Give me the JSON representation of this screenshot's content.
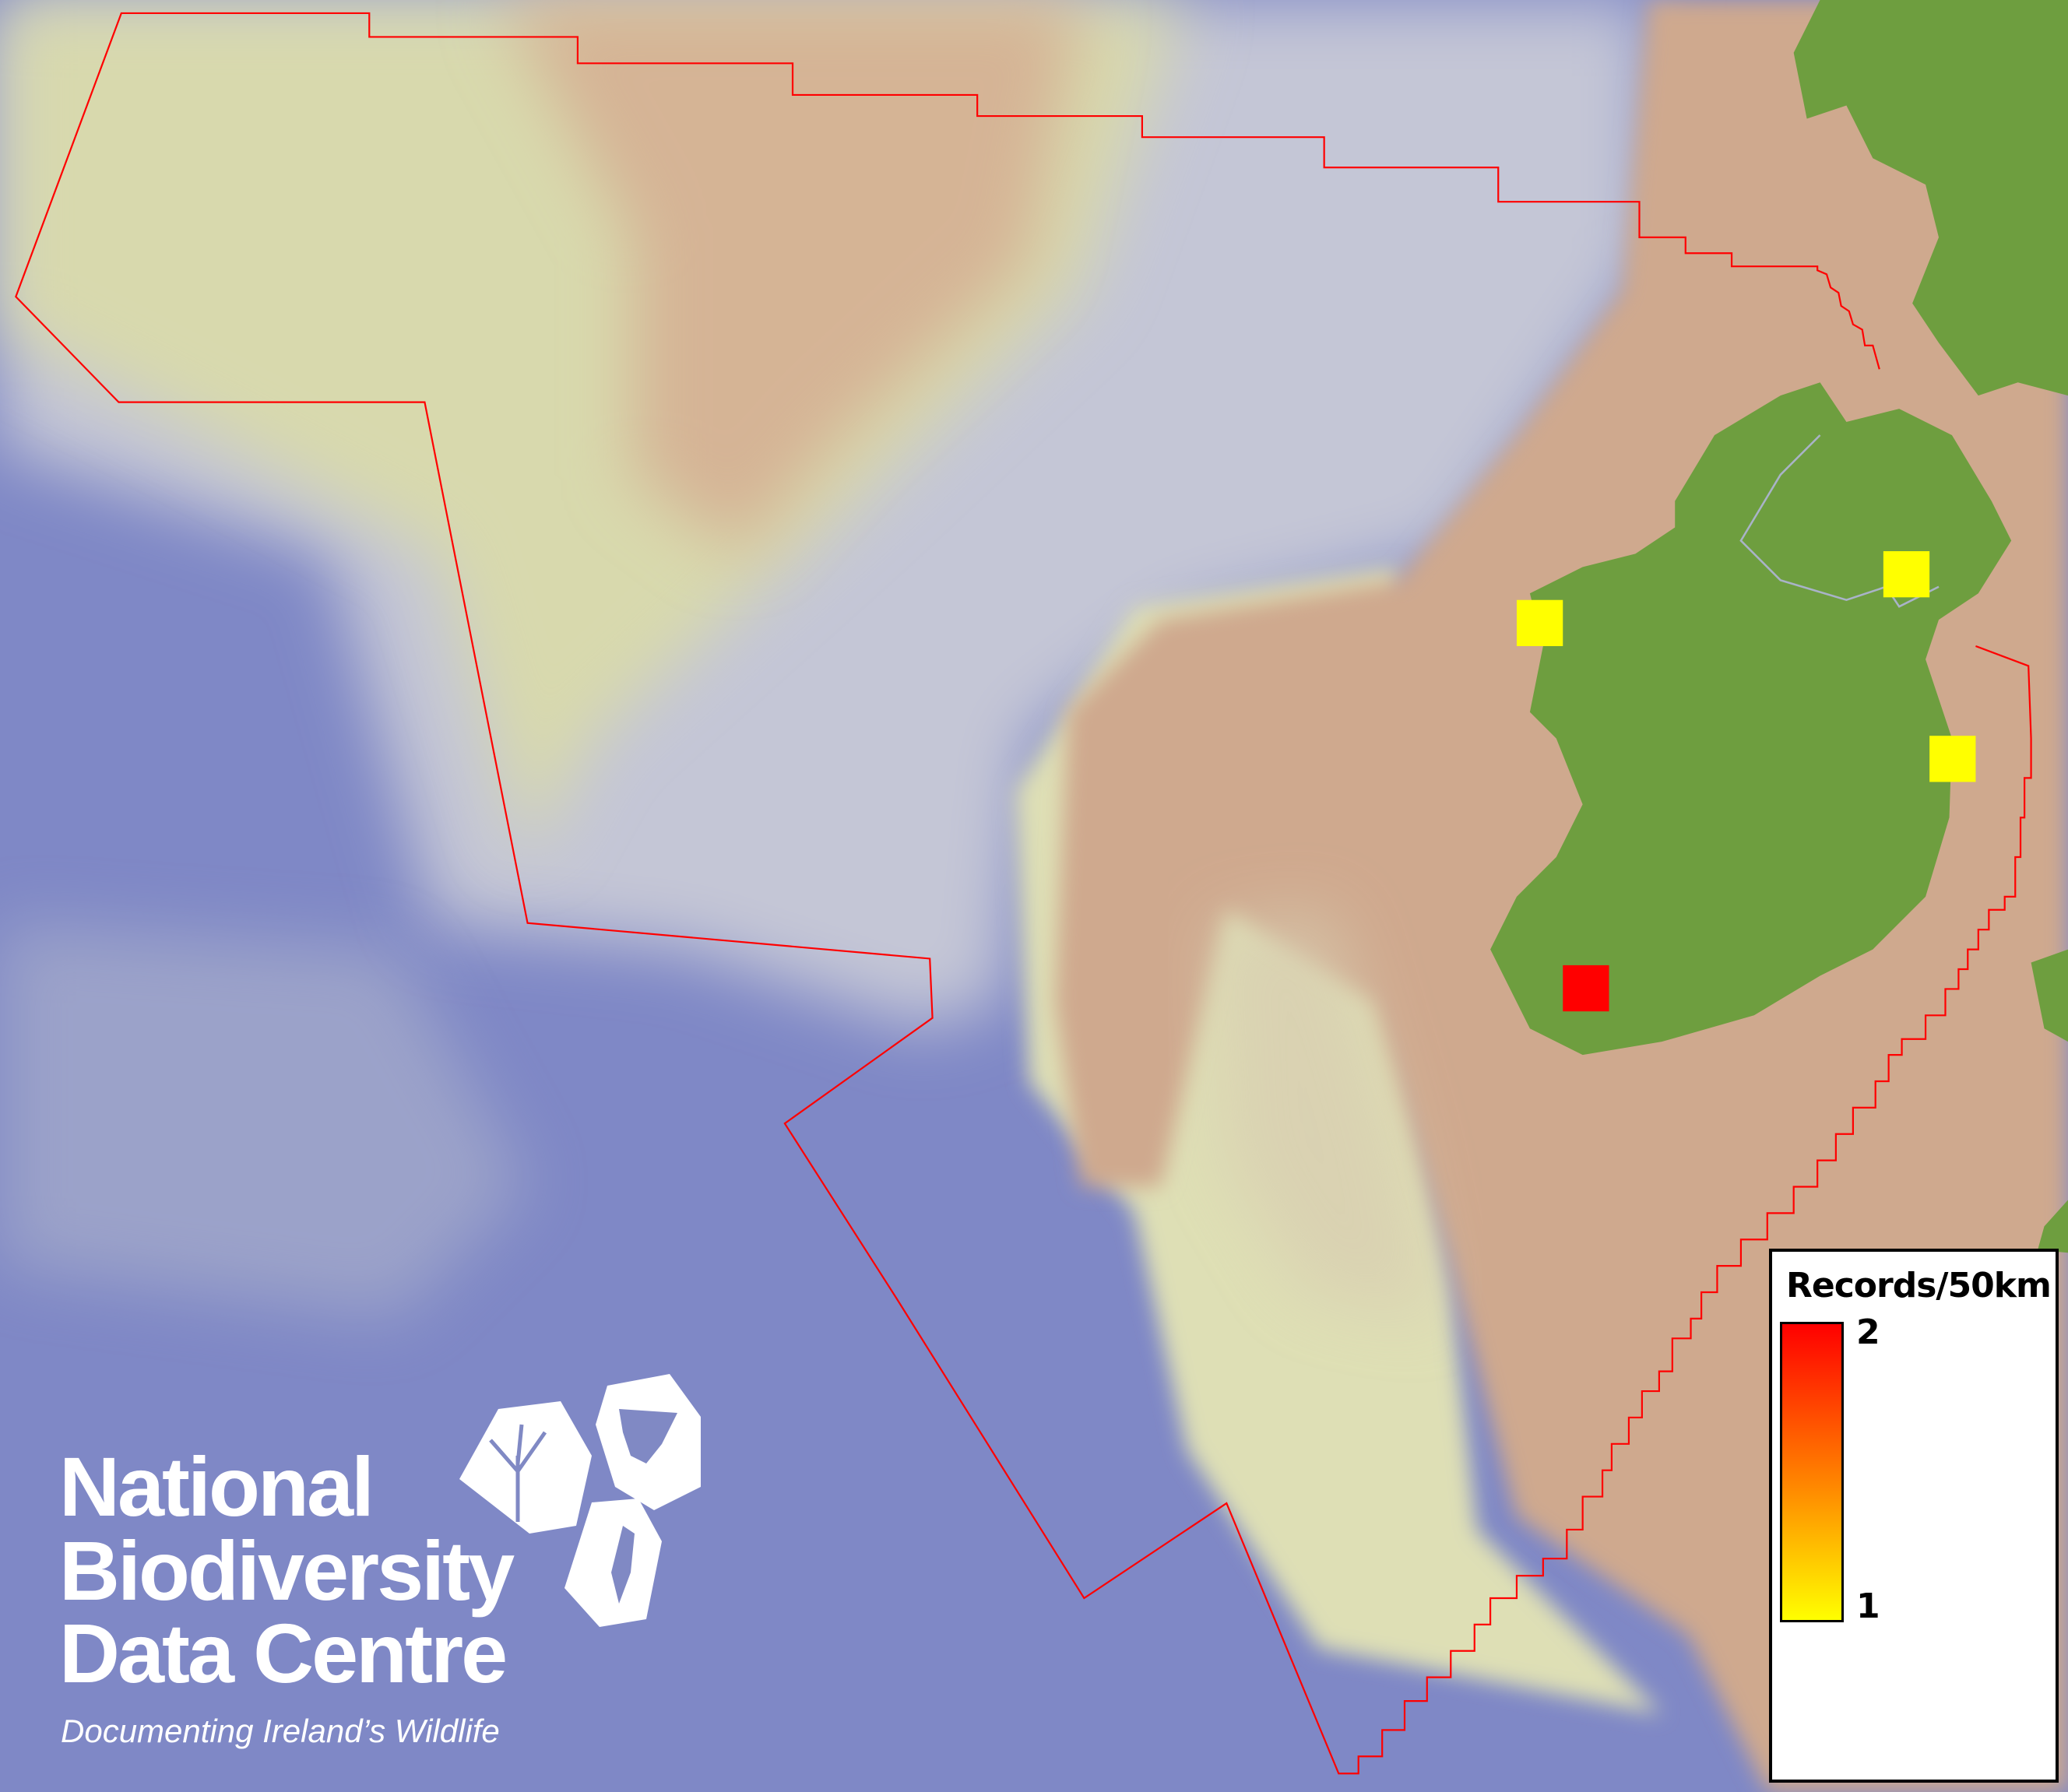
{
  "map": {
    "colors": {
      "deep_ocean": "#7f88c6",
      "slope": "#c9cccf",
      "bank": "#d9d9a8",
      "shelf": "#cfa98e",
      "land": "#6e9e3f",
      "boundary": "#ff0000"
    },
    "records": [
      {
        "cell": "north-west Mayo",
        "value": 1,
        "color": "#ffff00"
      },
      {
        "cell": "north-east (Louth/Armagh)",
        "value": 1,
        "color": "#ffff00"
      },
      {
        "cell": "east coast (Wicklow)",
        "value": 1,
        "color": "#ffff00"
      },
      {
        "cell": "south-west (Kerry)",
        "value": 2,
        "color": "#ff0000"
      }
    ]
  },
  "legend": {
    "title": "Records/50km",
    "max_label": "2",
    "min_label": "1",
    "ramp_colors": [
      "#ff0000",
      "#ff8800",
      "#ffff00"
    ]
  },
  "logo": {
    "line1": "National",
    "line2": "Biodiversity",
    "line3": "Data Centre",
    "tagline": "Documenting Ireland’s Wildlife"
  }
}
